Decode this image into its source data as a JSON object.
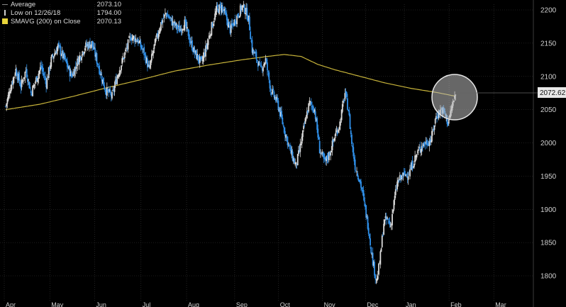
{
  "colors": {
    "background": "#000000",
    "grid": "#3a3a3a",
    "candle_up": "#d9d9d9",
    "candle_down": "#2f8fe8",
    "sma": "#c8b43a",
    "last_price_tag": "#e8e8e8",
    "highlight_circle": "#c8c8c8",
    "axis_text": "#d0d0d0"
  },
  "legend": {
    "average_label": "Average",
    "average_value": "2073.10",
    "low_label": "Low on 12/26/18",
    "low_value": "1794.00",
    "sma_label": "SMAVG (200)  on Close",
    "sma_value": "2070.13"
  },
  "chart_data": {
    "type": "candlestick",
    "x_ticks": [
      "Apr",
      "May",
      "Jun",
      "Jul",
      "Aug",
      "Sep",
      "Oct",
      "Nov",
      "Dec",
      "Jan",
      "Feb",
      "Mar"
    ],
    "y_ticks": [
      1800,
      1850,
      1900,
      1950,
      2000,
      2050,
      2100,
      2150,
      2200
    ],
    "ylim": [
      1775,
      2210
    ],
    "last_price": "2072.62",
    "grid": true,
    "price_path": [
      [
        0,
        2055
      ],
      [
        6,
        2085
      ],
      [
        12,
        2110
      ],
      [
        18,
        2085
      ],
      [
        24,
        2110
      ],
      [
        30,
        2075
      ],
      [
        36,
        2095
      ],
      [
        42,
        2115
      ],
      [
        48,
        2090
      ],
      [
        54,
        2125
      ],
      [
        62,
        2145
      ],
      [
        70,
        2125
      ],
      [
        78,
        2100
      ],
      [
        86,
        2125
      ],
      [
        94,
        2145
      ],
      [
        102,
        2150
      ],
      [
        110,
        2115
      ],
      [
        118,
        2080
      ],
      [
        126,
        2070
      ],
      [
        132,
        2100
      ],
      [
        140,
        2130
      ],
      [
        148,
        2160
      ],
      [
        156,
        2155
      ],
      [
        164,
        2135
      ],
      [
        170,
        2110
      ],
      [
        176,
        2145
      ],
      [
        184,
        2180
      ],
      [
        190,
        2195
      ],
      [
        198,
        2180
      ],
      [
        206,
        2170
      ],
      [
        212,
        2180
      ],
      [
        218,
        2155
      ],
      [
        224,
        2135
      ],
      [
        232,
        2120
      ],
      [
        238,
        2145
      ],
      [
        244,
        2175
      ],
      [
        250,
        2200
      ],
      [
        256,
        2205
      ],
      [
        262,
        2185
      ],
      [
        266,
        2170
      ],
      [
        272,
        2185
      ],
      [
        280,
        2205
      ],
      [
        284,
        2200
      ],
      [
        288,
        2185
      ],
      [
        292,
        2140
      ],
      [
        298,
        2125
      ],
      [
        302,
        2110
      ],
      [
        308,
        2125
      ],
      [
        314,
        2080
      ],
      [
        322,
        2060
      ],
      [
        330,
        2020
      ],
      [
        338,
        1985
      ],
      [
        344,
        1965
      ],
      [
        350,
        2000
      ],
      [
        356,
        2040
      ],
      [
        360,
        2060
      ],
      [
        366,
        2050
      ],
      [
        372,
        1990
      ],
      [
        378,
        1970
      ],
      [
        384,
        1985
      ],
      [
        390,
        2010
      ],
      [
        396,
        2030
      ],
      [
        402,
        2075
      ],
      [
        406,
        2050
      ],
      [
        410,
        2000
      ],
      [
        414,
        1965
      ],
      [
        418,
        1950
      ],
      [
        422,
        1930
      ],
      [
        426,
        1900
      ],
      [
        430,
        1870
      ],
      [
        434,
        1830
      ],
      [
        438,
        1800
      ],
      [
        440,
        1794
      ],
      [
        444,
        1830
      ],
      [
        448,
        1880
      ],
      [
        452,
        1885
      ],
      [
        456,
        1875
      ],
      [
        460,
        1910
      ],
      [
        464,
        1940
      ],
      [
        470,
        1950
      ],
      [
        478,
        1955
      ],
      [
        486,
        1980
      ],
      [
        492,
        1995
      ],
      [
        498,
        2000
      ],
      [
        504,
        2005
      ],
      [
        510,
        2040
      ],
      [
        516,
        2050
      ],
      [
        520,
        2045
      ],
      [
        524,
        2030
      ],
      [
        528,
        2050
      ],
      [
        533,
        2072.62
      ]
    ],
    "sma_path": [
      [
        0,
        2050
      ],
      [
        40,
        2058
      ],
      [
        80,
        2070
      ],
      [
        120,
        2083
      ],
      [
        160,
        2095
      ],
      [
        200,
        2108
      ],
      [
        240,
        2117
      ],
      [
        280,
        2125
      ],
      [
        310,
        2130
      ],
      [
        330,
        2133
      ],
      [
        350,
        2130
      ],
      [
        370,
        2118
      ],
      [
        390,
        2110
      ],
      [
        420,
        2100
      ],
      [
        450,
        2090
      ],
      [
        480,
        2082
      ],
      [
        510,
        2076
      ],
      [
        533,
        2070.13
      ]
    ]
  }
}
